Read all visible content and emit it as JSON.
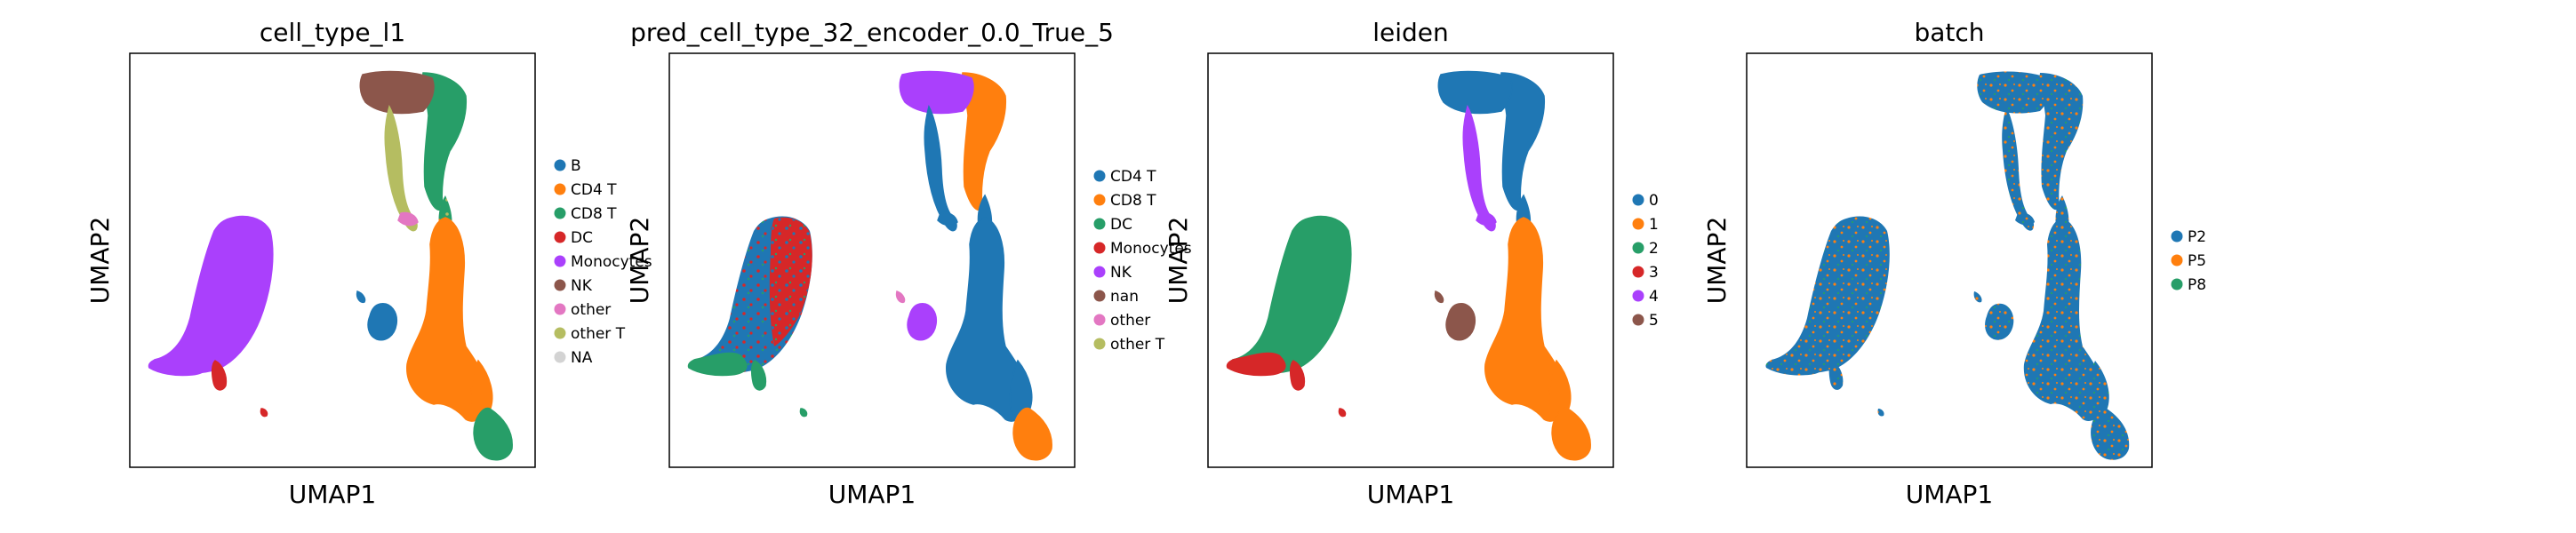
{
  "chart_data": [
    {
      "type": "scatter",
      "title": "cell_type_l1",
      "xlabel": "UMAP1",
      "ylabel": "UMAP2",
      "legend_position": "right",
      "grid": false,
      "legend": [
        {
          "name": "B",
          "color": "#1f77b4"
        },
        {
          "name": "CD4 T",
          "color": "#ff7f0e"
        },
        {
          "name": "CD8 T",
          "color": "#279e68"
        },
        {
          "name": "DC",
          "color": "#d62728"
        },
        {
          "name": "Monocytes",
          "color": "#aa40fc"
        },
        {
          "name": "NK",
          "color": "#8c564b"
        },
        {
          "name": "other",
          "color": "#e377c2"
        },
        {
          "name": "other T",
          "color": "#b5bd61"
        },
        {
          "name": "NA",
          "color": "#d3d3d3"
        }
      ]
    },
    {
      "type": "scatter",
      "title": "pred_cell_type_32_encoder_0.0_True_5",
      "xlabel": "UMAP1",
      "ylabel": "UMAP2",
      "legend_position": "right",
      "grid": false,
      "legend": [
        {
          "name": "CD4 T",
          "color": "#1f77b4"
        },
        {
          "name": "CD8 T",
          "color": "#ff7f0e"
        },
        {
          "name": "DC",
          "color": "#279e68"
        },
        {
          "name": "Monocytes",
          "color": "#d62728"
        },
        {
          "name": "NK",
          "color": "#aa40fc"
        },
        {
          "name": "nan",
          "color": "#8c564b"
        },
        {
          "name": "other",
          "color": "#e377c2"
        },
        {
          "name": "other T",
          "color": "#b5bd61"
        }
      ]
    },
    {
      "type": "scatter",
      "title": "leiden",
      "xlabel": "UMAP1",
      "ylabel": "UMAP2",
      "legend_position": "right",
      "grid": false,
      "legend": [
        {
          "name": "0",
          "color": "#1f77b4"
        },
        {
          "name": "1",
          "color": "#ff7f0e"
        },
        {
          "name": "2",
          "color": "#279e68"
        },
        {
          "name": "3",
          "color": "#d62728"
        },
        {
          "name": "4",
          "color": "#aa40fc"
        },
        {
          "name": "5",
          "color": "#8c564b"
        }
      ]
    },
    {
      "type": "scatter",
      "title": "batch",
      "xlabel": "UMAP1",
      "ylabel": "UMAP2",
      "legend_position": "right",
      "grid": false,
      "legend": [
        {
          "name": "P2",
          "color": "#1f77b4"
        },
        {
          "name": "P5",
          "color": "#ff7f0e"
        },
        {
          "name": "P8",
          "color": "#279e68"
        }
      ]
    }
  ]
}
